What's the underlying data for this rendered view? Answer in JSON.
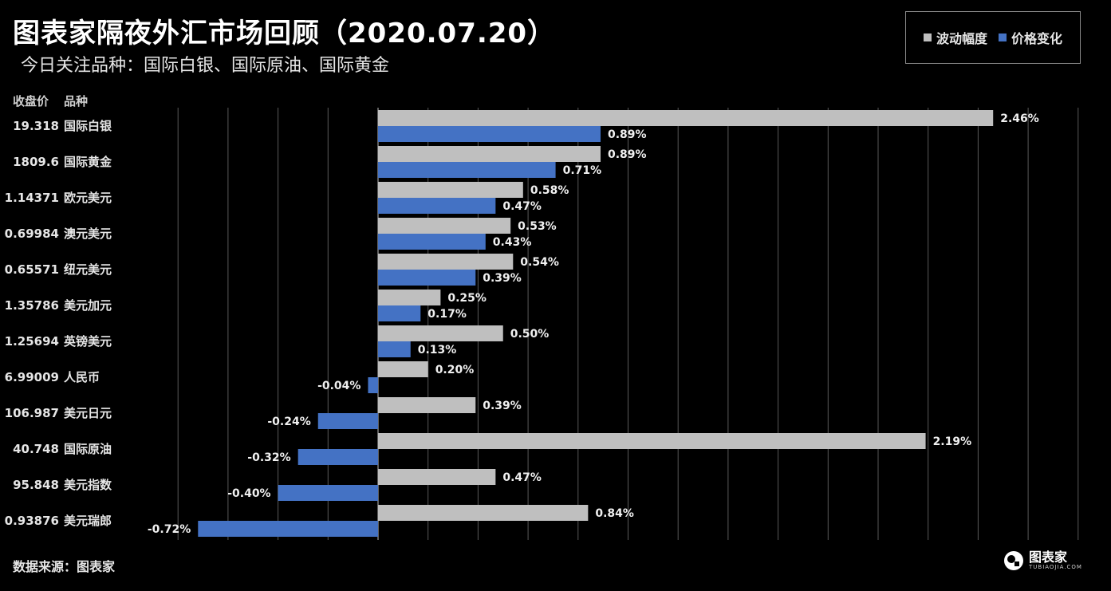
{
  "header": {
    "title": "图表家隔夜外汇市场回顾（2020.07.20）",
    "subtitle": "今日关注品种：国际白银、国际原油、国际黄金"
  },
  "columns": {
    "price": "收盘价",
    "name": "品种"
  },
  "footer": {
    "source": "数据来源：图表家",
    "logo_text": "图表家",
    "logo_sub": "TUBIAOJIA.COM"
  },
  "chart_data": {
    "type": "bar",
    "orientation": "horizontal",
    "categories": [
      "国际白银",
      "国际黄金",
      "欧元美元",
      "澳元美元",
      "纽元美元",
      "美元加元",
      "英镑美元",
      "人民币",
      "美元日元",
      "国际原油",
      "美元指数",
      "美元瑞郎"
    ],
    "prices": [
      "19.318",
      "1809.6",
      "1.14371",
      "0.69984",
      "0.65571",
      "1.35786",
      "1.25694",
      "6.99009",
      "106.987",
      "40.748",
      "95.848",
      "0.93876"
    ],
    "series": [
      {
        "name": "波动幅度",
        "color": "#bfbfbf",
        "values": [
          2.46,
          0.89,
          0.58,
          0.53,
          0.54,
          0.25,
          0.5,
          0.2,
          0.39,
          2.19,
          0.47,
          0.84
        ],
        "labels": [
          "2.46%",
          "0.89%",
          "0.58%",
          "0.53%",
          "0.54%",
          "0.25%",
          "0.50%",
          "0.20%",
          "0.39%",
          "2.19%",
          "0.47%",
          "0.84%"
        ]
      },
      {
        "name": "价格变化",
        "color": "#4472c4",
        "values": [
          0.89,
          0.71,
          0.47,
          0.43,
          0.39,
          0.17,
          0.13,
          -0.04,
          -0.24,
          -0.32,
          -0.4,
          -0.72
        ],
        "labels": [
          "0.89%",
          "0.71%",
          "0.47%",
          "0.43%",
          "0.39%",
          "0.17%",
          "0.13%",
          "-0.04%",
          "-0.24%",
          "-0.32%",
          "-0.40%",
          "-0.72%"
        ]
      }
    ],
    "xlim": [
      -0.8,
      2.8
    ],
    "grid": true,
    "legend_position": "top-right"
  }
}
